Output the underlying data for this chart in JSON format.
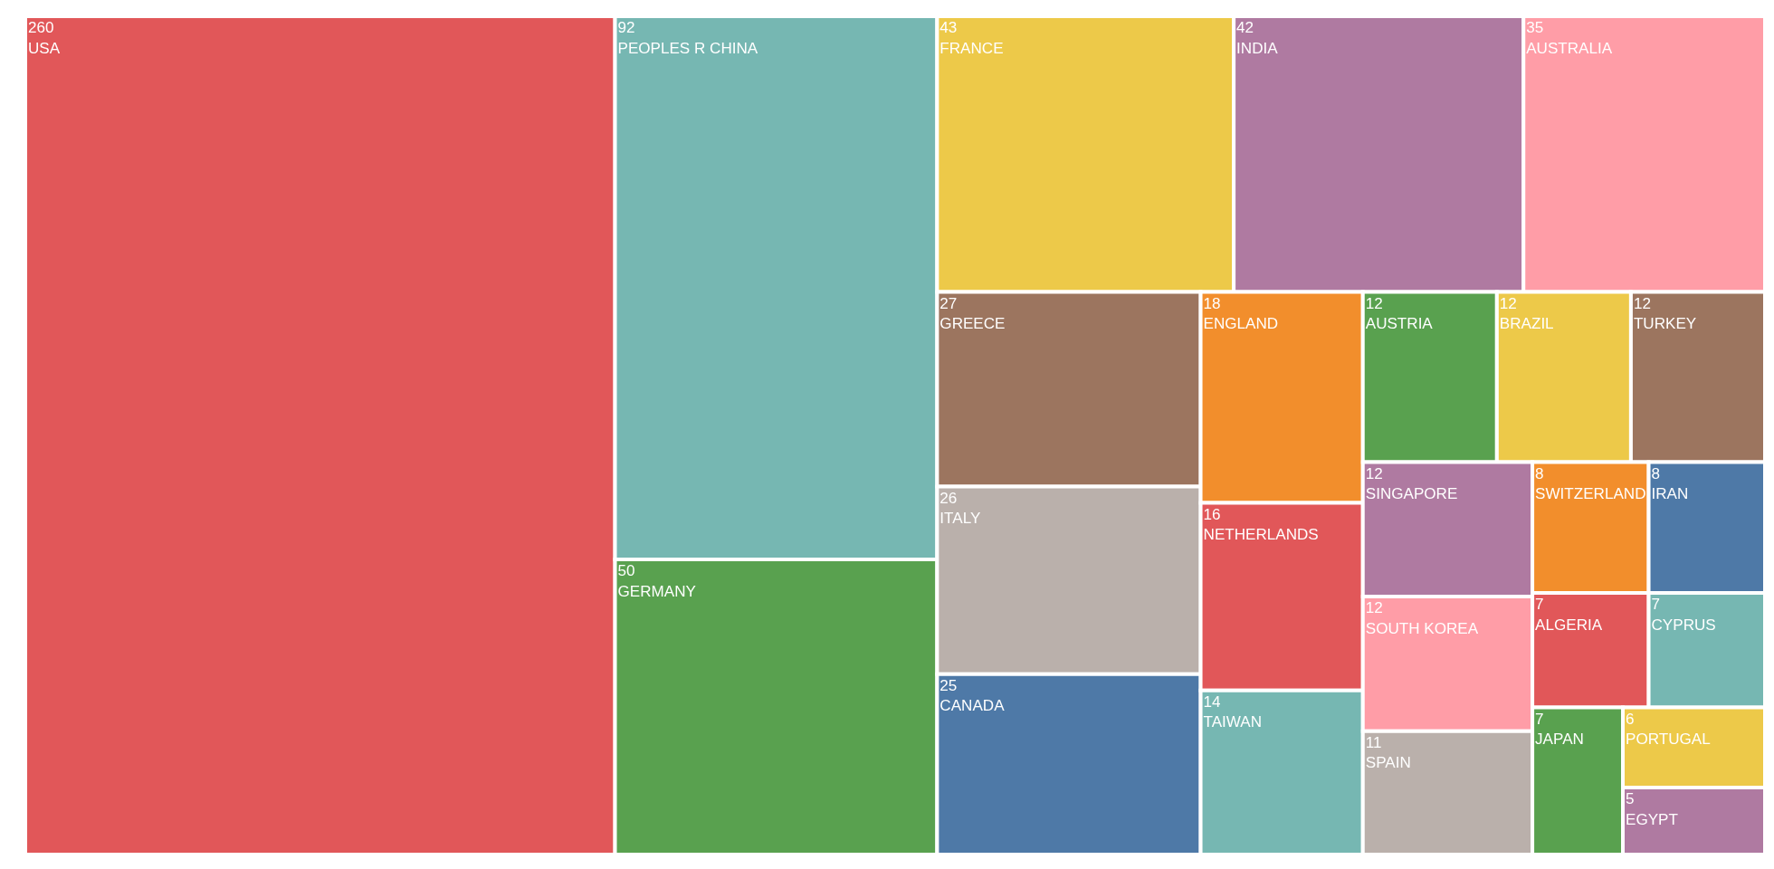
{
  "chart_data": {
    "type": "other",
    "data_labels": true,
    "categories": [
      "USA",
      "PEOPLES R CHINA",
      "GERMANY",
      "FRANCE",
      "INDIA",
      "AUSTRALIA",
      "GREECE",
      "ITALY",
      "CANADA",
      "ENGLAND",
      "NETHERLANDS",
      "TAIWAN",
      "AUSTRIA",
      "BRAZIL",
      "TURKEY",
      "SINGAPORE",
      "SOUTH KOREA",
      "SPAIN",
      "SWITZERLAND",
      "ALGERIA",
      "CYPRUS",
      "JAPAN",
      "IRAN",
      "PORTUGAL",
      "EGYPT"
    ],
    "values": [
      260,
      92,
      50,
      43,
      42,
      35,
      27,
      26,
      25,
      18,
      16,
      14,
      12,
      12,
      12,
      12,
      12,
      11,
      8,
      7,
      7,
      7,
      8,
      6,
      5
    ],
    "colors": [
      "#e15759",
      "#76b7b2",
      "#59a14f",
      "#edc949",
      "#af7aa1",
      "#ff9da7",
      "#9c755f",
      "#bab0ab",
      "#4e79a7",
      "#f28e2c",
      "#e15759",
      "#76b7b2",
      "#59a14f",
      "#edc949",
      "#9c755f",
      "#af7aa1",
      "#ff9da7",
      "#bab0ab",
      "#f28e2c",
      "#e15759",
      "#76b7b2",
      "#59a14f",
      "#4e79a7",
      "#edc949",
      "#af7aa1"
    ]
  }
}
